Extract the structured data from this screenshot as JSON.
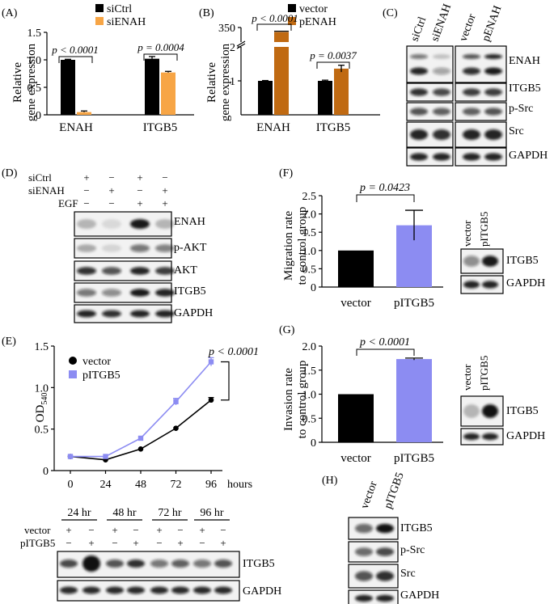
{
  "panels": {
    "A": {
      "label": "(A)",
      "ylabel_line1": "Relative",
      "ylabel_line2": "gene expression",
      "legend": [
        "siCtrl",
        "siENAH"
      ],
      "pvalues": [
        "p < 0.0001",
        "p = 0.0004"
      ],
      "colors": [
        "#000000",
        "#F7A545"
      ]
    },
    "B": {
      "label": "(B)",
      "ylabel_line1": "Relative",
      "ylabel_line2": "gene expression",
      "legend": [
        "vector",
        "pENAH"
      ],
      "pvalues": [
        "p < 0.0001",
        "p = 0.0037"
      ],
      "colors": [
        "#000000",
        "#C06A12"
      ]
    },
    "C": {
      "label": "(C)",
      "columns": [
        "siCtrl",
        "siENAH",
        "vector",
        "pENAH"
      ],
      "rows": [
        "ENAH",
        "ITGB5",
        "p-Src",
        "Src",
        "GAPDH"
      ]
    },
    "D": {
      "label": "(D)",
      "row_labels": [
        "siCtrl",
        "siENAH",
        "EGF"
      ],
      "signs": [
        [
          "+",
          "−",
          "+",
          "−"
        ],
        [
          "−",
          "+",
          "−",
          "+"
        ],
        [
          "−",
          "−",
          "+",
          "+"
        ]
      ],
      "bands": [
        "ENAH",
        "p-AKT",
        "AKT",
        "ITGB5",
        "GAPDH"
      ]
    },
    "E": {
      "label": "(E)",
      "ylabel": "OD",
      "ylabel_sub": "540",
      "xlabel": "hours",
      "legend": [
        "vector",
        "pITGB5"
      ],
      "pvalue": "p < 0.0001",
      "colors": [
        "#000000",
        "#8C8CF2"
      ],
      "time_labels": [
        "24 hr",
        "48 hr",
        "72 hr",
        "96 hr"
      ],
      "blot_rows": [
        "vector",
        "pITGB5"
      ],
      "blot_signs": [
        [
          "+",
          "−",
          "+",
          "−",
          "+",
          "−",
          "+",
          "−"
        ],
        [
          "−",
          "+",
          "−",
          "+",
          "−",
          "+",
          "−",
          "+"
        ]
      ],
      "bands": [
        "ITGB5",
        "GAPDH"
      ]
    },
    "F": {
      "label": "(F)",
      "ylabel_line1": "Migration rate",
      "ylabel_line2": "to control group",
      "pvalue": "p = 0.0423",
      "blot_columns": [
        "vector",
        "pITGB5"
      ],
      "bands": [
        "ITGB5",
        "GAPDH"
      ],
      "colors": [
        "#000000",
        "#8C8CF2"
      ]
    },
    "G": {
      "label": "(G)",
      "ylabel_line1": "Invasion rate",
      "ylabel_line2": "to control group",
      "pvalue": "p < 0.0001",
      "blot_columns": [
        "vector",
        "pITGB5"
      ],
      "bands": [
        "ITGB5",
        "GAPDH"
      ],
      "colors": [
        "#000000",
        "#8C8CF2"
      ]
    },
    "H": {
      "label": "(H)",
      "columns": [
        "vector",
        "pITGB5"
      ],
      "bands": [
        "ITGB5",
        "p-Src",
        "Src",
        "GAPDH"
      ]
    }
  },
  "chart_data": [
    {
      "id": "A",
      "type": "bar",
      "categories": [
        "ENAH",
        "ITGB5"
      ],
      "series": [
        {
          "name": "siCtrl",
          "values": [
            1.0,
            1.02
          ],
          "errors": [
            0.01,
            0.04
          ]
        },
        {
          "name": "siENAH",
          "values": [
            0.05,
            0.77
          ],
          "errors": [
            0.02,
            0.02
          ]
        }
      ],
      "ylim": [
        0,
        1.5
      ],
      "yticks": [
        "0",
        "0.5",
        "1.0",
        "1.5"
      ]
    },
    {
      "id": "B",
      "type": "bar",
      "categories": [
        "ENAH",
        "ITGB5"
      ],
      "series": [
        {
          "name": "vector",
          "values": [
            1.0,
            1.0
          ],
          "errors": [
            0.01,
            0.02
          ]
        },
        {
          "name": "pENAH",
          "values": [
            330,
            1.36
          ],
          "errors": [
            4,
            0.1
          ]
        }
      ],
      "axis_break": [
        2.0,
        300
      ],
      "yticks": [
        "1",
        "2",
        "350"
      ]
    },
    {
      "id": "E",
      "type": "line",
      "x": [
        0,
        24,
        48,
        72,
        96
      ],
      "series": [
        {
          "name": "vector",
          "values": [
            0.17,
            0.13,
            0.26,
            0.51,
            0.85
          ],
          "errors": [
            0.01,
            0.01,
            0.01,
            0.01,
            0.03
          ]
        },
        {
          "name": "pITGB5",
          "values": [
            0.17,
            0.17,
            0.39,
            0.83,
            1.31
          ],
          "errors": [
            0.01,
            0.01,
            0.01,
            0.04,
            0.05
          ]
        }
      ],
      "ylim": [
        0,
        1.5
      ],
      "yticks": [
        "0",
        "0.5",
        "1.0",
        "1.5"
      ],
      "xticks": [
        "0",
        "24",
        "48",
        "72",
        "96"
      ]
    },
    {
      "id": "F",
      "type": "bar",
      "categories": [
        "vector",
        "pITGB5"
      ],
      "values": [
        1.0,
        1.69
      ],
      "errors": [
        0,
        0.41
      ],
      "ylim": [
        0,
        2.5
      ],
      "yticks": [
        "0",
        "0.5",
        "1.0",
        "1.5",
        "2.0",
        "2.5"
      ]
    },
    {
      "id": "G",
      "type": "bar",
      "categories": [
        "vector",
        "pITGB5"
      ],
      "values": [
        1.0,
        1.73
      ],
      "errors": [
        0,
        0.02
      ],
      "ylim": [
        0,
        2.0
      ],
      "yticks": [
        "0",
        "0.5",
        "1.0",
        "1.5",
        "2.0"
      ]
    }
  ]
}
